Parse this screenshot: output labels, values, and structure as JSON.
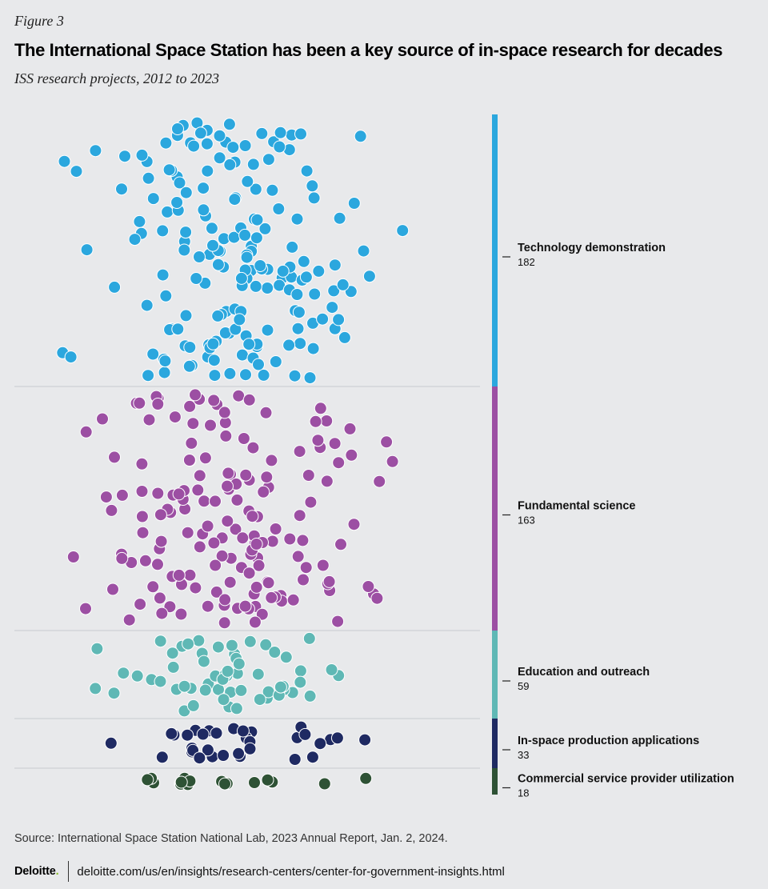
{
  "figure_label": "Figure 3",
  "title": "The International Space Station has been a key source of in-space research for decades",
  "subtitle": "ISS research projects, 2012 to 2023",
  "source": "Source: International Space Station National Lab, 2023 Annual Report, Jan. 2, 2024.",
  "footer": {
    "brand": "Deloitte",
    "brand_dot": ".",
    "url": "deloitte.com/us/en/insights/research-centers/center-for-government-insights.html"
  },
  "chart_data": {
    "type": "beeswarm",
    "title": "The International Space Station has been a key source of in-space research for decades",
    "subtitle": "ISS research projects, 2012 to 2023",
    "series": [
      {
        "name": "Technology demonstration",
        "value": 182,
        "color": "#2ba7de"
      },
      {
        "name": "Fundamental science",
        "value": 163,
        "color": "#9c4fa3"
      },
      {
        "name": "Education and outreach",
        "value": 59,
        "color": "#5fb8b5"
      },
      {
        "name": "In-space production applications",
        "value": 33,
        "color": "#1f2a62"
      },
      {
        "name": "Commercial service provider utilization",
        "value": 18,
        "color": "#2e5235"
      }
    ]
  }
}
